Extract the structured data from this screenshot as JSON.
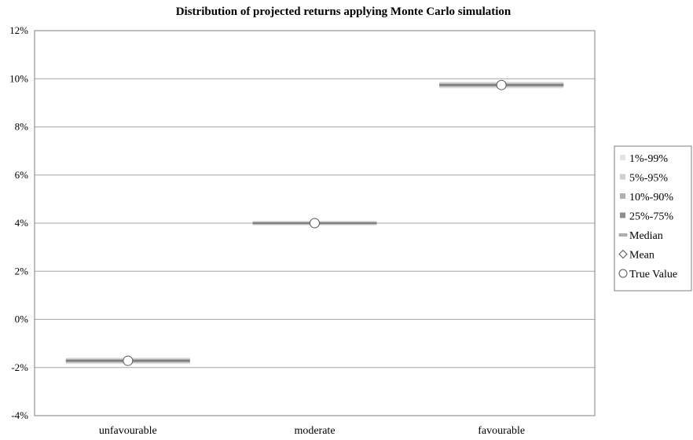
{
  "chart_data": {
    "type": "boxplot-percentile-bands",
    "title": "Distribution of projected returns applying Monte Carlo simulation",
    "categories": [
      "unfavourable",
      "moderate",
      "favourable"
    ],
    "y_ticks": [
      "-4%",
      "-2%",
      "0%",
      "2%",
      "4%",
      "6%",
      "8%",
      "10%",
      "12%"
    ],
    "ylim": [
      -4,
      12
    ],
    "y_unit": "%",
    "grid": true,
    "legend_position": "right",
    "legend": [
      "1%-99%",
      "5%-95%",
      "10%-90%",
      "25%-75%",
      "Median",
      "Mean",
      "True Value"
    ],
    "series": [
      {
        "category": "unfavourable",
        "p1": -1.85,
        "p5": -1.82,
        "p10": -1.79,
        "p25": -1.76,
        "median": -1.72,
        "mean": -1.72,
        "true_value": -1.72,
        "p75": -1.68,
        "p90": -1.65,
        "p95": -1.62,
        "p99": -1.59
      },
      {
        "category": "moderate",
        "p1": 3.9,
        "p5": 3.93,
        "p10": 3.95,
        "p25": 3.97,
        "median": 4.0,
        "mean": 4.0,
        "true_value": 4.0,
        "p75": 4.03,
        "p90": 4.05,
        "p95": 4.07,
        "p99": 4.1
      },
      {
        "category": "favourable",
        "p1": 9.6,
        "p5": 9.64,
        "p10": 9.67,
        "p25": 9.7,
        "median": 9.74,
        "mean": 9.74,
        "true_value": 9.74,
        "p75": 9.78,
        "p90": 9.81,
        "p95": 9.84,
        "p99": 9.88
      }
    ],
    "colors": {
      "band_1_99": "#e4e4e4",
      "band_5_95": "#cfcfcf",
      "band_10_90": "#b0b0b0",
      "band_25_75": "#8f8f8f",
      "median": "#7a7a7a",
      "grid": "#a6a6a6",
      "axis": "#7f7f7f"
    }
  }
}
